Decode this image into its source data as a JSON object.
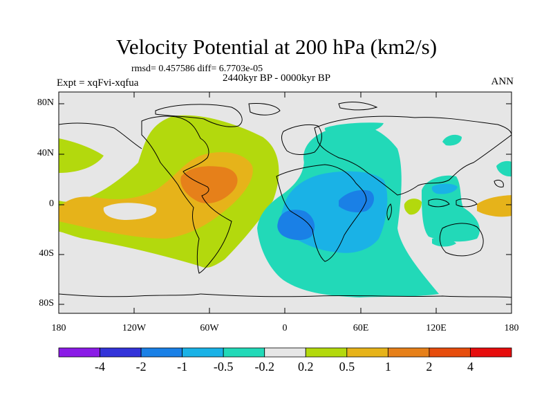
{
  "title": "Velocity Potential at 200 hPa (km2/s)",
  "stats": "rmsd= 0.457586 diff= 6.7703e-05",
  "period": "2440kyr BP - 0000kyr BP",
  "experiment": "Expt = xqFvi-xqfua",
  "season": "ANN",
  "lat_ticks": [
    "80N",
    "40N",
    "0",
    "40S",
    "80S"
  ],
  "lon_ticks": [
    "180",
    "120W",
    "60W",
    "0",
    "60E",
    "120E",
    "180"
  ],
  "colorbar": {
    "labels": [
      "-4",
      "-2",
      "-1",
      "-0.5",
      "-0.2",
      "0.2",
      "0.5",
      "1",
      "2",
      "4"
    ],
    "colors": [
      "#8a1be6",
      "#3333d9",
      "#1a80e6",
      "#1ab2e6",
      "#22d9b8",
      "#e6e6e6",
      "#b3d90d",
      "#e6b31a",
      "#e6801a",
      "#e64d0d",
      "#e60d0d"
    ]
  },
  "regions": [
    {
      "name": "western-hemisphere-positive",
      "level": "0.2 to 0.5",
      "color": "#b3d90d"
    },
    {
      "name": "americas-atlantic-positive",
      "level": "0.5 to 1",
      "color": "#e6b31a"
    },
    {
      "name": "caribbean-positive-max",
      "level": "1 to 2",
      "color": "#e6801a"
    },
    {
      "name": "africa-indian-ocean-negative",
      "level": "-0.5 to -0.2",
      "color": "#22d9b8"
    },
    {
      "name": "east-africa-negative-max",
      "level": "-1 to -0.5",
      "color": "#1ab2e6"
    },
    {
      "name": "central-africa-negative-core",
      "level": "-2 to -1",
      "color": "#1a80e6"
    },
    {
      "name": "maritime-continent-negative",
      "level": "-0.5 to -0.2",
      "color": "#22d9b8"
    },
    {
      "name": "west-pacific-positive",
      "level": "0.5 to 1",
      "color": "#e6b31a"
    }
  ]
}
